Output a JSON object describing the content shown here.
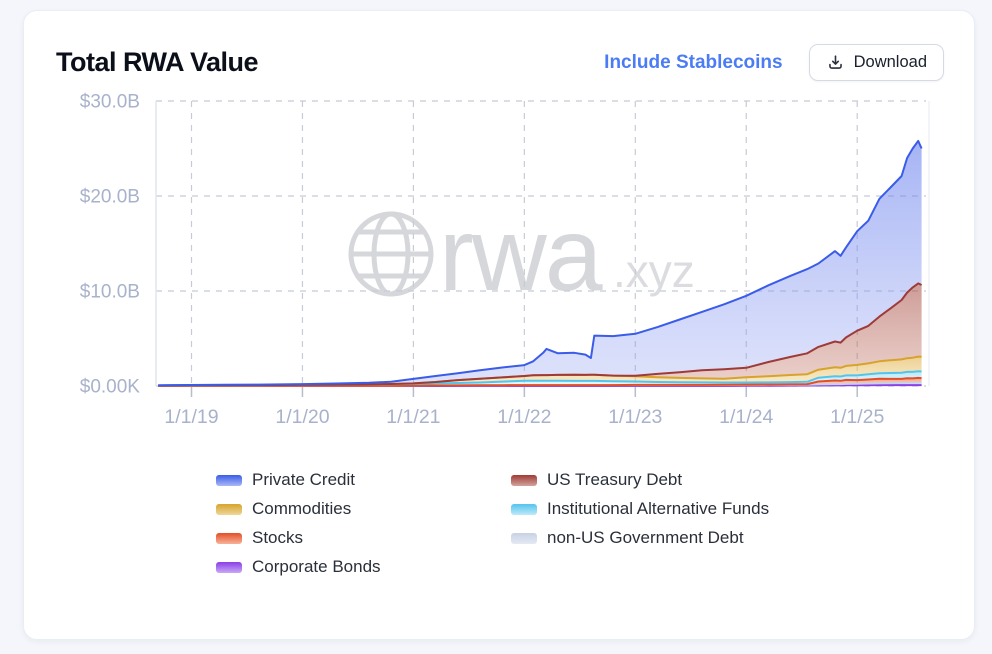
{
  "header": {
    "title": "Total RWA Value",
    "stablecoins_link": "Include Stablecoins",
    "download_label": "Download"
  },
  "watermark": {
    "main": "rwa",
    "suffix": ".xyz"
  },
  "colors": {
    "page_background": "#F4F6FB",
    "card_background": "#FFFFFF",
    "axis_text": "#A8B2CB",
    "gridline": "#C6CBD6",
    "link_blue": "#4C7CF4",
    "watermark_gray": "#D6D7DB"
  },
  "chart_data": {
    "type": "area",
    "stacked": true,
    "title": "Total RWA Value",
    "unit": "USD billions",
    "grid": "dashed",
    "legend_position": "bottom",
    "x_range": [
      2018.68,
      2025.62
    ],
    "y_range": [
      0,
      30
    ],
    "y_ticks": [
      {
        "value": 0,
        "label": "$0.00K"
      },
      {
        "value": 10,
        "label": "$10.0B"
      },
      {
        "value": 20,
        "label": "$20.0B"
      },
      {
        "value": 30,
        "label": "$30.0B"
      }
    ],
    "x_ticks": [
      {
        "value": 2019,
        "label": "1/1/19"
      },
      {
        "value": 2020,
        "label": "1/1/20"
      },
      {
        "value": 2021,
        "label": "1/1/21"
      },
      {
        "value": 2022,
        "label": "1/1/22"
      },
      {
        "value": 2023,
        "label": "1/1/23"
      },
      {
        "value": 2024,
        "label": "1/1/24"
      },
      {
        "value": 2025,
        "label": "1/1/25"
      }
    ],
    "x": [
      2018.7,
      2019.0,
      2019.3,
      2019.6,
      2020.0,
      2020.3,
      2020.6,
      2020.8,
      2021.0,
      2021.2,
      2021.4,
      2021.6,
      2021.8,
      2022.0,
      2022.08,
      2022.17,
      2022.2,
      2022.3,
      2022.45,
      2022.55,
      2022.6,
      2022.63,
      2022.8,
      2023.0,
      2023.2,
      2023.4,
      2023.6,
      2023.8,
      2024.0,
      2024.2,
      2024.4,
      2024.55,
      2024.65,
      2024.8,
      2024.85,
      2024.9,
      2025.0,
      2025.1,
      2025.2,
      2025.3,
      2025.4,
      2025.45,
      2025.5,
      2025.55,
      2025.58
    ],
    "series": [
      {
        "name": "Corporate Bonds",
        "key": "corporate-bonds",
        "line": "#8A3FE8",
        "fill_top": "rgba(150,90,235,0.50)",
        "fill_bottom": "rgba(190,155,245,0.35)",
        "swatch_bottom": "#C9A8F5",
        "values": [
          0,
          0,
          0,
          0,
          0,
          0,
          0,
          0,
          0,
          0,
          0,
          0,
          0,
          0,
          0,
          0,
          0,
          0,
          0,
          0,
          0,
          0,
          0,
          0,
          0,
          0,
          0,
          0,
          0.02,
          0.03,
          0.04,
          0.05,
          0.05,
          0.06,
          0.06,
          0.07,
          0.08,
          0.08,
          0.09,
          0.09,
          0.1,
          0.1,
          0.1,
          0.1,
          0.1
        ]
      },
      {
        "name": "non-US Government Debt",
        "key": "non-us-government-debt",
        "line": "#C7D2E3",
        "fill_top": "rgba(206,216,232,0.70)",
        "fill_bottom": "rgba(224,231,241,0.50)",
        "swatch_bottom": "#E4EAF3",
        "values": [
          0.01,
          0.01,
          0.01,
          0.01,
          0.02,
          0.02,
          0.02,
          0.03,
          0.04,
          0.05,
          0.06,
          0.07,
          0.08,
          0.1,
          0.1,
          0.1,
          0.1,
          0.1,
          0.1,
          0.1,
          0.1,
          0.1,
          0.1,
          0.1,
          0.1,
          0.1,
          0.1,
          0.1,
          0.1,
          0.1,
          0.1,
          0.1,
          0.12,
          0.14,
          0.14,
          0.15,
          0.16,
          0.18,
          0.2,
          0.22,
          0.23,
          0.24,
          0.25,
          0.25,
          0.25
        ]
      },
      {
        "name": "Stocks",
        "key": "stocks",
        "line": "#E44D26",
        "fill_top": "rgba(240,110,70,0.65)",
        "fill_bottom": "rgba(246,160,130,0.45)",
        "swatch_bottom": "#F6B39A",
        "values": [
          0,
          0,
          0,
          0,
          0,
          0,
          0,
          0,
          0,
          0,
          0,
          0,
          0,
          0,
          0,
          0,
          0,
          0,
          0,
          0,
          0,
          0,
          0,
          0.02,
          0.02,
          0.02,
          0.02,
          0.03,
          0.03,
          0.03,
          0.04,
          0.05,
          0.3,
          0.38,
          0.35,
          0.42,
          0.38,
          0.42,
          0.48,
          0.44,
          0.42,
          0.48,
          0.45,
          0.5,
          0.48
        ]
      },
      {
        "name": "Institutional Alternative Funds",
        "key": "institutional-alternative-funds",
        "line": "#54C4EC",
        "fill_top": "rgba(140,218,246,0.60)",
        "fill_bottom": "rgba(195,236,250,0.45)",
        "swatch_bottom": "#BEE9FA",
        "values": [
          0.04,
          0.06,
          0.07,
          0.08,
          0.1,
          0.11,
          0.13,
          0.15,
          0.18,
          0.22,
          0.26,
          0.3,
          0.38,
          0.45,
          0.45,
          0.45,
          0.45,
          0.45,
          0.44,
          0.44,
          0.44,
          0.44,
          0.4,
          0.35,
          0.3,
          0.28,
          0.26,
          0.24,
          0.22,
          0.22,
          0.23,
          0.24,
          0.4,
          0.45,
          0.45,
          0.48,
          0.5,
          0.55,
          0.58,
          0.62,
          0.65,
          0.66,
          0.68,
          0.7,
          0.7
        ]
      },
      {
        "name": "Commodities",
        "key": "commodities",
        "line": "#D7A32C",
        "fill_top": "rgba(226,178,76,0.60)",
        "fill_bottom": "rgba(238,212,140,0.45)",
        "swatch_bottom": "#EDD79A",
        "values": [
          0,
          0,
          0,
          0,
          0,
          0,
          0.02,
          0.03,
          0.05,
          0.15,
          0.3,
          0.4,
          0.45,
          0.5,
          0.58,
          0.6,
          0.6,
          0.62,
          0.65,
          0.63,
          0.65,
          0.65,
          0.6,
          0.55,
          0.5,
          0.45,
          0.42,
          0.4,
          0.55,
          0.65,
          0.75,
          0.8,
          0.85,
          0.95,
          0.92,
          1.0,
          1.1,
          1.15,
          1.25,
          1.35,
          1.4,
          1.45,
          1.5,
          1.55,
          1.55
        ]
      },
      {
        "name": "US Treasury Debt",
        "key": "us-treasury-debt",
        "line": "#9E3A38",
        "fill_top": "rgba(164,74,66,0.55)",
        "fill_bottom": "rgba(200,124,108,0.35)",
        "swatch_bottom": "#D3A39B",
        "values": [
          0,
          0,
          0,
          0,
          0,
          0,
          0,
          0,
          0,
          0,
          0,
          0,
          0,
          0,
          0,
          0,
          0,
          0,
          0,
          0,
          0,
          0,
          0,
          0.05,
          0.35,
          0.6,
          0.85,
          1.0,
          1.0,
          1.5,
          1.9,
          2.2,
          2.4,
          2.7,
          2.65,
          3.0,
          3.6,
          3.95,
          4.7,
          5.45,
          6.25,
          6.9,
          7.4,
          7.7,
          7.55
        ]
      },
      {
        "name": "Private Credit",
        "key": "private-credit",
        "line": "#3A5CE8",
        "fill_top": "rgba(92,118,236,0.55)",
        "fill_bottom": "rgba(152,166,242,0.32)",
        "swatch_bottom": "#A9B8F5",
        "values": [
          0.03,
          0.04,
          0.05,
          0.06,
          0.08,
          0.13,
          0.17,
          0.24,
          0.48,
          0.63,
          0.73,
          0.88,
          1.04,
          1.15,
          1.47,
          2.35,
          2.75,
          2.28,
          2.31,
          2.13,
          1.76,
          4.11,
          4.15,
          4.43,
          4.93,
          5.55,
          6.15,
          6.83,
          7.58,
          8.07,
          8.54,
          8.86,
          8.78,
          9.52,
          9.13,
          9.48,
          10.48,
          11.07,
          12.4,
          12.73,
          13.05,
          14.17,
          14.62,
          15.0,
          14.37
        ]
      }
    ],
    "legend_order": [
      "Private Credit",
      "US Treasury Debt",
      "Commodities",
      "Institutional Alternative Funds",
      "Stocks",
      "non-US Government Debt",
      "Corporate Bonds"
    ]
  }
}
